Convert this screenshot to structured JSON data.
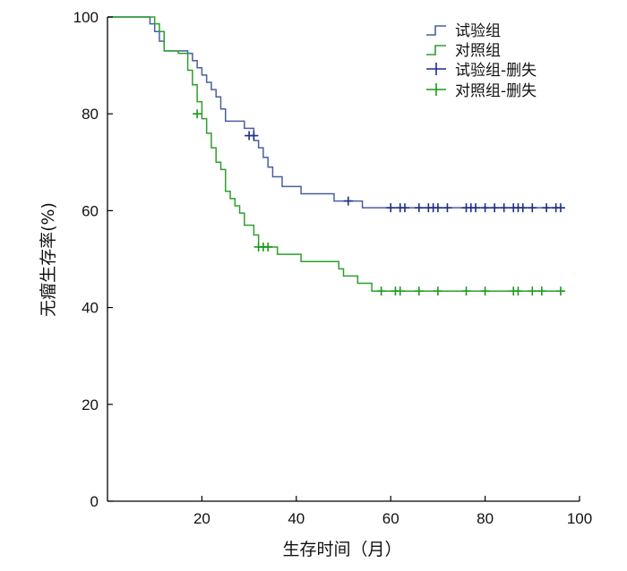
{
  "chart_data": {
    "type": "line",
    "title": "",
    "xlabel": "生存时间（月）",
    "ylabel": "无瘤生存率(%)",
    "xlim": [
      0,
      100
    ],
    "ylim": [
      0,
      100
    ],
    "xticks": [
      20,
      40,
      60,
      80,
      100
    ],
    "yticks": [
      0,
      20,
      40,
      60,
      80,
      100
    ],
    "grid": false,
    "legend_position": "top-right",
    "legend": [
      "试验组",
      "对照组",
      "试验组-删失",
      "对照组-删失"
    ],
    "series": [
      {
        "name": "试验组",
        "color": "#4a5fa3",
        "censor_color": "#1f2f86",
        "steps": [
          [
            0,
            100
          ],
          [
            9,
            98.6
          ],
          [
            10,
            97
          ],
          [
            11,
            95
          ],
          [
            12,
            93
          ],
          [
            17,
            92.5
          ],
          [
            18,
            91
          ],
          [
            19,
            89.5
          ],
          [
            20,
            88
          ],
          [
            21,
            86.5
          ],
          [
            22,
            85
          ],
          [
            23,
            83.5
          ],
          [
            24,
            81
          ],
          [
            25,
            78.5
          ],
          [
            29,
            77
          ],
          [
            31,
            74.5
          ],
          [
            32,
            73
          ],
          [
            33,
            71
          ],
          [
            34,
            69
          ],
          [
            35,
            67
          ],
          [
            37,
            65
          ],
          [
            41,
            63.5
          ],
          [
            48,
            62
          ],
          [
            54,
            60.6
          ],
          [
            96,
            60.6
          ]
        ],
        "censored": [
          30,
          31,
          51,
          60,
          62,
          63,
          66,
          68,
          69,
          70,
          72,
          76,
          77,
          78,
          80,
          82,
          84,
          86,
          87,
          88,
          90,
          93,
          95,
          96
        ],
        "censored_y": [
          75.5,
          75.5,
          62,
          60.6,
          60.6,
          60.6,
          60.6,
          60.6,
          60.6,
          60.6,
          60.6,
          60.6,
          60.6,
          60.6,
          60.6,
          60.6,
          60.6,
          60.6,
          60.6,
          60.6,
          60.6,
          60.6,
          60.6,
          60.6
        ]
      },
      {
        "name": "对照组",
        "color": "#2ca02c",
        "censor_color": "#1a9a1a",
        "steps": [
          [
            0,
            100
          ],
          [
            10,
            98.6
          ],
          [
            11,
            97
          ],
          [
            12,
            93
          ],
          [
            15,
            92.5
          ],
          [
            17,
            89
          ],
          [
            18,
            86
          ],
          [
            19,
            82.5
          ],
          [
            20,
            79
          ],
          [
            21,
            76
          ],
          [
            22,
            73
          ],
          [
            23,
            70
          ],
          [
            24,
            68.5
          ],
          [
            25,
            64
          ],
          [
            26,
            62.5
          ],
          [
            27,
            61
          ],
          [
            28,
            59.5
          ],
          [
            29,
            57
          ],
          [
            31,
            55
          ],
          [
            32,
            52.5
          ],
          [
            36,
            51
          ],
          [
            41,
            49.5
          ],
          [
            49,
            48
          ],
          [
            50,
            46.5
          ],
          [
            53,
            45
          ],
          [
            56,
            43.4
          ],
          [
            96,
            43.4
          ]
        ],
        "censored": [
          19,
          32,
          33,
          34,
          58,
          61,
          62,
          66,
          70,
          76,
          80,
          86,
          87,
          90,
          92,
          96
        ],
        "censored_y": [
          80,
          52.5,
          52.5,
          52.5,
          43.4,
          43.4,
          43.4,
          43.4,
          43.4,
          43.4,
          43.4,
          43.4,
          43.4,
          43.4,
          43.4,
          43.4
        ]
      }
    ]
  }
}
